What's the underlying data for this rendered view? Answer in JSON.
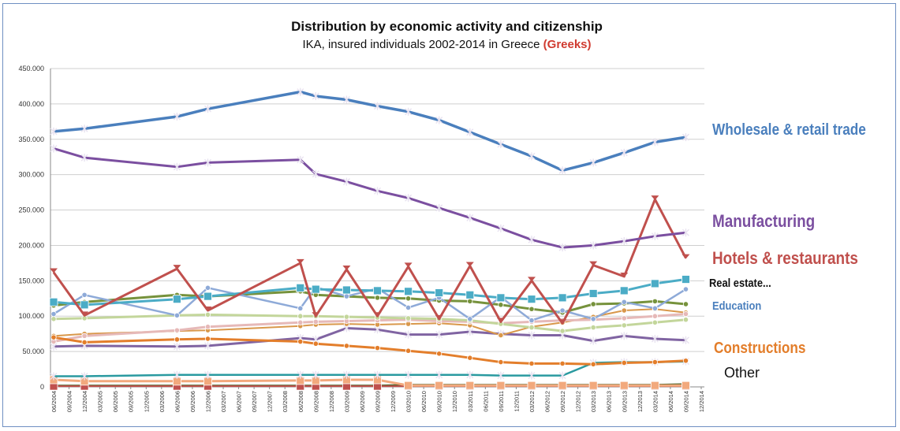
{
  "chart_data": {
    "type": "line",
    "title": "Distribution by economic activity and citizenship",
    "subtitle": {
      "main": "IKA, insured individuals 2002-2014 in Greece",
      "highlight": "(Greeks)"
    },
    "xlabel": "",
    "ylabel": "",
    "ylim": [
      0,
      450000
    ],
    "yticks": [
      0,
      50000,
      100000,
      150000,
      200000,
      250000,
      300000,
      350000,
      400000,
      450000
    ],
    "ytick_labels": [
      "0",
      "50.000",
      "100.000",
      "150.000",
      "200.000",
      "250.000",
      "300.000",
      "350.000",
      "400.000",
      "450.000"
    ],
    "grid": "horizontal",
    "x": [
      "06/2004",
      "09/2004",
      "12/2004",
      "03/2005",
      "06/2005",
      "09/2005",
      "12/2005",
      "03/2006",
      "06/2006",
      "09/2006",
      "12/2006",
      "03/2007",
      "06/2007",
      "09/2007",
      "12/2007",
      "03/2008",
      "06/2008",
      "09/2008",
      "12/2008",
      "03/2009",
      "06/2009",
      "09/2009",
      "12/2009",
      "03/2010",
      "06/2010",
      "09/2010",
      "12/2010",
      "03/2011",
      "06/2011",
      "09/2011",
      "12/2011",
      "03/2012",
      "06/2012",
      "09/2012",
      "12/2012",
      "03/2013",
      "06/2013",
      "09/2013",
      "12/2013",
      "03/2014",
      "06/2014",
      "09/2014",
      "12/2014"
    ],
    "series": [
      {
        "name": "Wholesale & retail trade",
        "color": "#4a7fbd",
        "marker": "star",
        "width": 3.5,
        "values": [
          361000,
          null,
          365000,
          null,
          null,
          null,
          null,
          null,
          382000,
          null,
          393000,
          null,
          null,
          null,
          null,
          null,
          417000,
          411000,
          null,
          406000,
          null,
          397000,
          null,
          389000,
          null,
          377000,
          null,
          360000,
          null,
          343000,
          null,
          326000,
          null,
          306000,
          null,
          317000,
          null,
          331000,
          null,
          346000,
          null,
          353000,
          null
        ]
      },
      {
        "name": "Manufacturing",
        "color": "#7b4fa0",
        "marker": "star",
        "width": 3,
        "values": [
          337000,
          null,
          324000,
          null,
          null,
          null,
          null,
          null,
          311000,
          null,
          317000,
          null,
          null,
          null,
          null,
          null,
          321000,
          301000,
          null,
          290000,
          null,
          277000,
          null,
          267000,
          null,
          253000,
          null,
          239000,
          null,
          224000,
          null,
          208000,
          null,
          197000,
          null,
          200000,
          null,
          206000,
          null,
          213000,
          null,
          218000,
          null
        ]
      },
      {
        "name": "Hotels & restaurants",
        "color": "#c0504d",
        "marker": "triangle",
        "width": 3,
        "values": [
          162000,
          null,
          101000,
          null,
          null,
          null,
          null,
          null,
          167000,
          null,
          108000,
          null,
          null,
          null,
          null,
          null,
          175000,
          100000,
          null,
          166000,
          null,
          100000,
          null,
          170000,
          null,
          96000,
          null,
          171000,
          null,
          92000,
          null,
          150000,
          null,
          90000,
          null,
          172000,
          null,
          156000,
          null,
          265000,
          null,
          182000,
          null
        ]
      },
      {
        "name": "Real estate...",
        "color": "#4bacc6",
        "marker": "square",
        "width": 3,
        "values": [
          120000,
          null,
          116000,
          null,
          null,
          null,
          null,
          null,
          124000,
          null,
          128000,
          null,
          null,
          null,
          null,
          null,
          140000,
          138000,
          null,
          137000,
          null,
          136000,
          null,
          135000,
          null,
          133000,
          null,
          130000,
          null,
          126000,
          null,
          124000,
          null,
          126000,
          null,
          132000,
          null,
          136000,
          null,
          146000,
          null,
          152000,
          null
        ]
      },
      {
        "name": "Education",
        "color": "#8eaad8",
        "marker": "circle",
        "width": 2.5,
        "values": [
          103000,
          null,
          130000,
          null,
          null,
          null,
          null,
          null,
          101000,
          null,
          140000,
          null,
          null,
          null,
          null,
          null,
          111000,
          141000,
          null,
          128000,
          null,
          139000,
          null,
          112000,
          null,
          126000,
          null,
          96000,
          null,
          127000,
          null,
          94000,
          null,
          108000,
          null,
          96000,
          null,
          120000,
          null,
          111000,
          null,
          138000,
          null
        ]
      },
      {
        "name": "Constructions",
        "color": "#e37e2b",
        "marker": "circle",
        "width": 3,
        "values": [
          70000,
          null,
          63000,
          null,
          null,
          null,
          null,
          null,
          67000,
          null,
          68000,
          null,
          null,
          null,
          null,
          null,
          64000,
          61000,
          null,
          58000,
          null,
          55000,
          null,
          51000,
          null,
          47000,
          null,
          41000,
          null,
          35000,
          null,
          33000,
          null,
          33000,
          null,
          32000,
          null,
          34000,
          null,
          35000,
          null,
          37000,
          null
        ]
      },
      {
        "name": "",
        "color": "#76923c",
        "marker": "circle",
        "width": 3,
        "values": [
          115000,
          null,
          120000,
          null,
          null,
          null,
          null,
          null,
          130000,
          null,
          128000,
          null,
          null,
          null,
          null,
          null,
          135000,
          130000,
          null,
          128000,
          null,
          126000,
          null,
          125000,
          null,
          122000,
          null,
          121000,
          null,
          116000,
          null,
          110000,
          null,
          105000,
          null,
          117000,
          null,
          118000,
          null,
          121000,
          null,
          117000,
          null
        ]
      },
      {
        "name": "",
        "color": "#c3d69b",
        "marker": "circle",
        "width": 3,
        "values": [
          96000,
          null,
          97000,
          null,
          null,
          null,
          null,
          null,
          101000,
          null,
          102000,
          null,
          null,
          null,
          null,
          null,
          100000,
          100000,
          null,
          99000,
          null,
          98000,
          null,
          97000,
          null,
          96000,
          null,
          94000,
          null,
          89000,
          null,
          84000,
          null,
          79000,
          null,
          84000,
          null,
          87000,
          null,
          91000,
          null,
          95000,
          null
        ]
      },
      {
        "name": "",
        "color": "#e6b9b8",
        "marker": "circle",
        "width": 3,
        "values": [
          64000,
          null,
          72000,
          null,
          null,
          null,
          null,
          null,
          80000,
          null,
          85000,
          null,
          null,
          null,
          null,
          null,
          91000,
          92000,
          null,
          93000,
          null,
          94000,
          null,
          95000,
          null,
          93000,
          null,
          92000,
          null,
          90000,
          null,
          92000,
          null,
          94000,
          null,
          95000,
          null,
          97000,
          null,
          100000,
          null,
          103000,
          null
        ]
      },
      {
        "name": "",
        "color": "#d9984b",
        "marker": "circle",
        "width": 2,
        "values": [
          72000,
          null,
          75000,
          null,
          null,
          null,
          null,
          null,
          79000,
          null,
          80000,
          null,
          null,
          null,
          null,
          null,
          86000,
          88000,
          null,
          89000,
          null,
          88000,
          null,
          89000,
          null,
          90000,
          null,
          87000,
          null,
          73000,
          null,
          85000,
          null,
          91000,
          null,
          99000,
          null,
          108000,
          null,
          110000,
          null,
          105000,
          null
        ]
      },
      {
        "name": "",
        "color": "#8064a2",
        "marker": "star",
        "width": 3,
        "values": [
          57000,
          null,
          58000,
          null,
          null,
          null,
          null,
          null,
          57000,
          null,
          58000,
          null,
          null,
          null,
          null,
          null,
          69000,
          67000,
          null,
          83000,
          null,
          81000,
          null,
          74000,
          null,
          74000,
          null,
          78000,
          null,
          75000,
          null,
          73000,
          null,
          73000,
          null,
          65000,
          null,
          72000,
          null,
          68000,
          null,
          66000,
          null
        ]
      },
      {
        "name": "",
        "color": "#2a9aa0",
        "marker": "star",
        "width": 2.5,
        "values": [
          15000,
          null,
          15000,
          null,
          null,
          null,
          null,
          null,
          17000,
          null,
          17000,
          null,
          null,
          null,
          null,
          null,
          17000,
          17000,
          null,
          17000,
          null,
          17000,
          null,
          17000,
          null,
          17000,
          null,
          17000,
          null,
          16000,
          null,
          16000,
          null,
          16000,
          null,
          34000,
          null,
          35000,
          null,
          35000,
          null,
          36000,
          null
        ]
      },
      {
        "name": "",
        "color": "#f2a97d",
        "marker": "square",
        "width": 3,
        "values": [
          10000,
          null,
          8000,
          null,
          null,
          null,
          null,
          null,
          8000,
          null,
          8000,
          null,
          null,
          null,
          null,
          null,
          9000,
          9000,
          null,
          10000,
          null,
          10000,
          null,
          2000,
          null,
          2000,
          null,
          2000,
          null,
          2000,
          null,
          2000,
          null,
          2000,
          null,
          2000,
          null,
          2000,
          null,
          2000,
          null,
          2000,
          null
        ]
      },
      {
        "name": "",
        "color": "#c0504d",
        "marker": "square",
        "width": 2,
        "values": [
          1000,
          null,
          1000,
          null,
          null,
          null,
          null,
          null,
          1000,
          null,
          1000,
          null,
          null,
          null,
          null,
          null,
          1000,
          1000,
          null,
          1000,
          null,
          1000,
          null,
          1000,
          null,
          1000,
          null,
          1000,
          null,
          1000,
          null,
          1000,
          null,
          1000,
          null,
          1000,
          null,
          1000,
          null,
          1000,
          null,
          1000,
          null
        ]
      },
      {
        "name": "",
        "color": "#4f6228",
        "marker": "circle",
        "width": 2,
        "values": [
          2000,
          null,
          2000,
          null,
          null,
          null,
          null,
          null,
          2000,
          null,
          2000,
          null,
          null,
          null,
          null,
          null,
          2000,
          2000,
          null,
          2000,
          null,
          2000,
          null,
          3000,
          null,
          3000,
          null,
          3000,
          null,
          3000,
          null,
          3000,
          null,
          3000,
          null,
          3000,
          null,
          3000,
          null,
          3000,
          null,
          4000,
          null
        ]
      }
    ],
    "annotations": [
      {
        "text": "Wholesale & retail trade",
        "color": "#4a7fbd",
        "size": "large"
      },
      {
        "text": "Manufacturing",
        "color": "#7b4fa0",
        "size": "large"
      },
      {
        "text": "Hotels & restaurants",
        "color": "#c0504d",
        "size": "large"
      },
      {
        "text": "Real estate...",
        "color": "#111111",
        "size": "small"
      },
      {
        "text": "Education",
        "color": "#4a7fbd",
        "size": "small"
      },
      {
        "text": "Constructions",
        "color": "#e37e2b",
        "size": "medium"
      },
      {
        "text": "Other",
        "color": "#111111",
        "size": "medium"
      }
    ]
  }
}
